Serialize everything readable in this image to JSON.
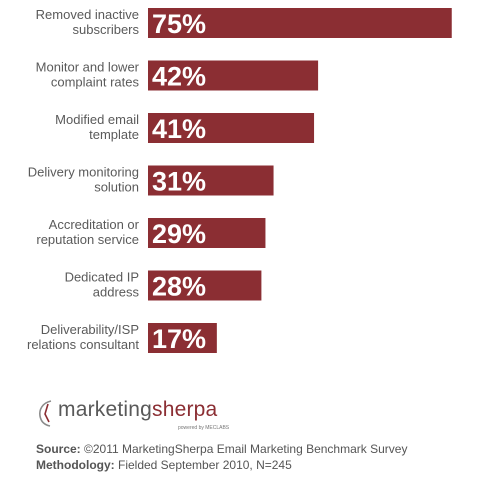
{
  "chart_data": {
    "type": "bar",
    "orientation": "horizontal",
    "categories": [
      [
        "Removed inactive",
        "subscribers"
      ],
      [
        "Monitor and lower",
        "complaint rates"
      ],
      [
        "Modified email",
        "template"
      ],
      [
        "Delivery monitoring",
        "solution"
      ],
      [
        "Accreditation or",
        "reputation service"
      ],
      [
        "Dedicated IP",
        "address"
      ],
      [
        "Deliverability/ISP",
        "relations consultant"
      ]
    ],
    "values": [
      75,
      42,
      41,
      31,
      29,
      28,
      17
    ],
    "value_labels": [
      "75%",
      "42%",
      "41%",
      "31%",
      "29%",
      "28%",
      "17%"
    ],
    "bar_color": "#8b2e33",
    "xlim": [
      0,
      100
    ],
    "grid": false,
    "legend": "none"
  },
  "logo": {
    "word1": "marketing",
    "word2": "sherpa",
    "tagline": "powered by MECLABS"
  },
  "footer": {
    "source_label": "Source:",
    "source_text": " ©2011 MarketingSherpa Email Marketing Benchmark Survey",
    "methodology_label": "Methodology:",
    "methodology_text": " Fielded September 2010, N=245"
  }
}
